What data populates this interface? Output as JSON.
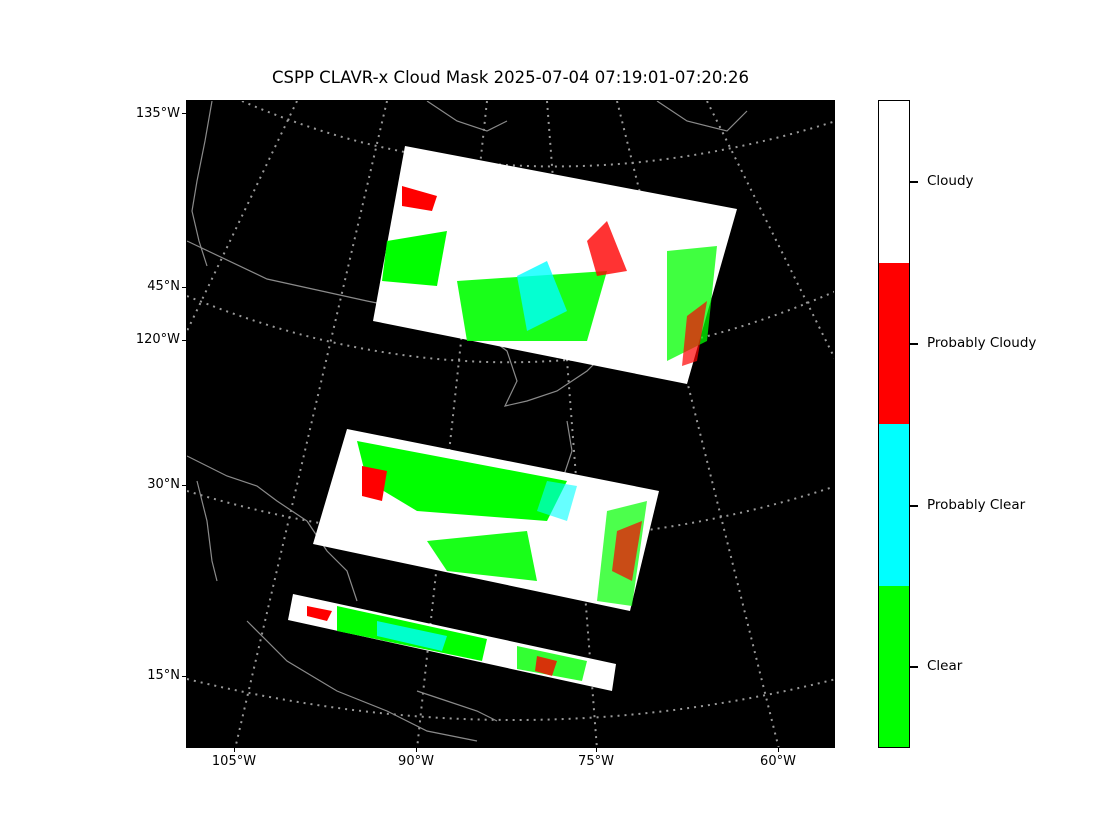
{
  "title": "CSPP CLAVR-x Cloud Mask 2025-07-04 07:19:01-07:20:26",
  "map": {
    "left_labels": [
      "135°W",
      "45°N",
      "120°W",
      "30°N",
      "15°N"
    ],
    "bottom_labels": [
      "105°W",
      "90°W",
      "75°W",
      "60°W"
    ]
  },
  "colorbar": {
    "categories": [
      {
        "label": "Cloudy",
        "color": "#ffffff"
      },
      {
        "label": "Probably Cloudy",
        "color": "#ff0000"
      },
      {
        "label": "Probably Clear",
        "color": "#00ffff"
      },
      {
        "label": "Clear",
        "color": "#00ff00"
      }
    ]
  },
  "colors": {
    "background": "#000000",
    "coastline": "#888888",
    "graticule": "#999999"
  }
}
